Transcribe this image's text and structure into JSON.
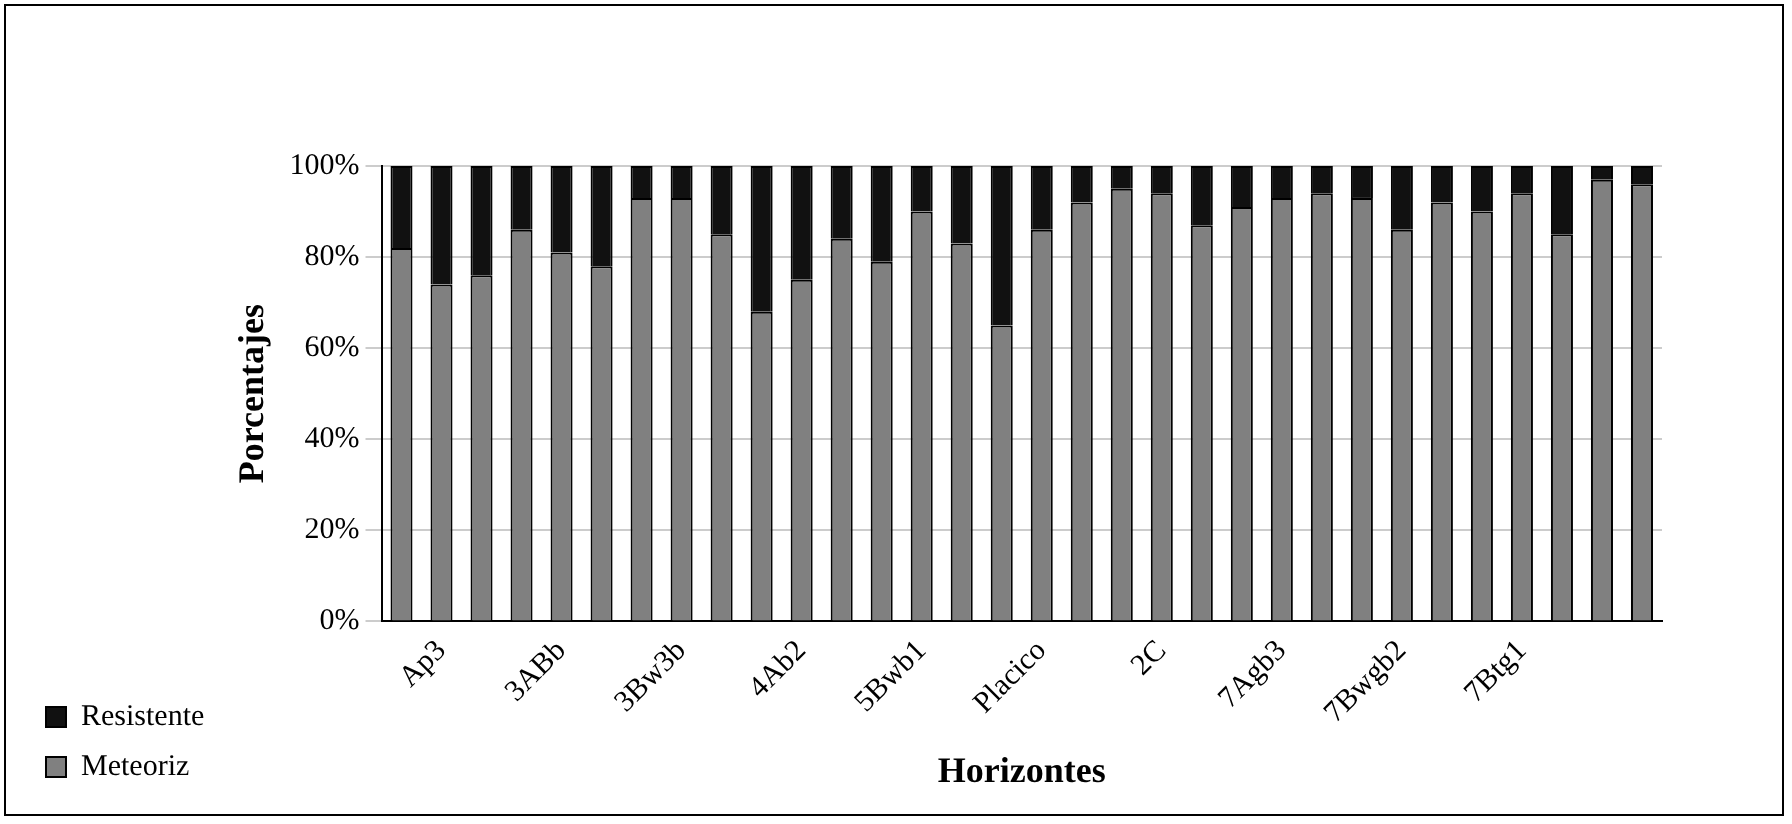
{
  "chart_data": {
    "type": "bar",
    "stacked": true,
    "xlabel": "Horizontes",
    "ylabel": "Porcentajes",
    "categories": [
      null,
      "Ap3",
      null,
      null,
      "3ABb",
      null,
      null,
      "3Bw3b",
      null,
      null,
      "4Ab2",
      null,
      null,
      "5Bwb1",
      null,
      null,
      "Placico",
      null,
      null,
      "2C",
      null,
      null,
      "7Agb3",
      null,
      null,
      "7Bwgb2",
      null,
      null,
      "7Btg1",
      null,
      null,
      null
    ],
    "series": [
      {
        "name": "Meteoriz",
        "color": "#808080",
        "values": [
          82,
          74,
          76,
          86,
          81,
          78,
          93,
          93,
          85,
          68,
          75,
          84,
          79,
          90,
          83,
          65,
          86,
          92,
          95,
          94,
          87,
          91,
          93,
          94,
          93,
          86,
          92,
          90,
          94,
          85,
          97,
          96
        ]
      },
      {
        "name": "Resistente",
        "color": "#111111",
        "values": [
          18,
          26,
          24,
          14,
          19,
          22,
          7,
          7,
          15,
          32,
          25,
          16,
          21,
          10,
          17,
          35,
          14,
          8,
          5,
          6,
          13,
          9,
          7,
          6,
          7,
          14,
          8,
          10,
          6,
          15,
          3,
          4
        ]
      }
    ],
    "ylim": [
      0,
      100
    ],
    "yticks": [
      {
        "value": 0,
        "label": "0%"
      },
      {
        "value": 20,
        "label": "20%"
      },
      {
        "value": 40,
        "label": "40%"
      },
      {
        "value": 60,
        "label": "60%"
      },
      {
        "value": 80,
        "label": "80%"
      },
      {
        "value": 100,
        "label": "100%"
      }
    ],
    "grid": "y",
    "legend": "bottom left"
  }
}
